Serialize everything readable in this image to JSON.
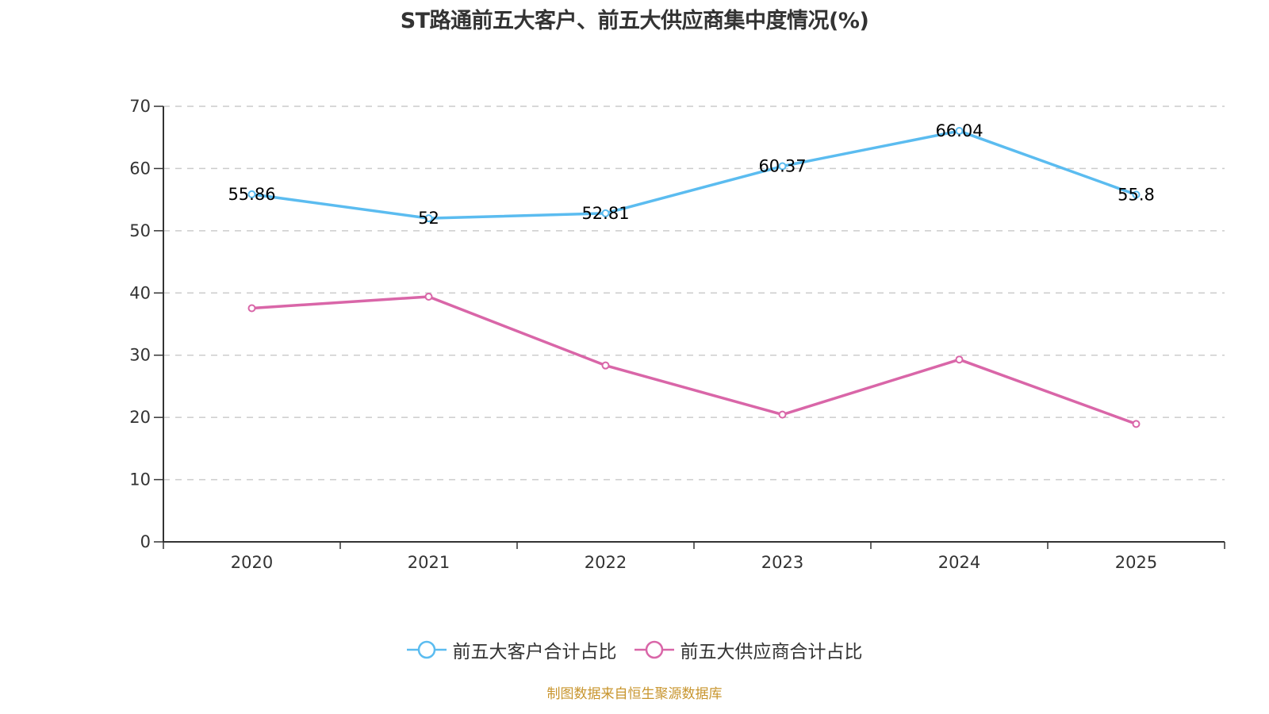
{
  "title": "ST路通前五大客户、前五大供应商集中度情况(%)",
  "source": "制图数据来自恒生聚源数据库",
  "chart_data": {
    "type": "line",
    "title": "ST路通前五大客户、前五大供应商集中度情况(%)",
    "xlabel": "",
    "ylabel": "",
    "categories": [
      "2020",
      "2021",
      "2022",
      "2023",
      "2024",
      "2025"
    ],
    "ylim": [
      0,
      70
    ],
    "yticks": [
      0,
      10,
      20,
      30,
      40,
      50,
      60,
      70
    ],
    "grid": true,
    "legend_position": "bottom",
    "series": [
      {
        "name": "前五大客户合计占比",
        "color": "#5bbcf0",
        "values": [
          55.86,
          52,
          52.81,
          60.37,
          66.04,
          55.8
        ],
        "labels": [
          "55.86",
          "52",
          "52.81",
          "60.37",
          "66.04",
          "55.8"
        ],
        "show_labels": true
      },
      {
        "name": "前五大供应商合计占比",
        "color": "#d966a8",
        "values": [
          37.55,
          39.4,
          28.35,
          20.45,
          29.3,
          18.95
        ],
        "show_labels": false
      }
    ]
  }
}
